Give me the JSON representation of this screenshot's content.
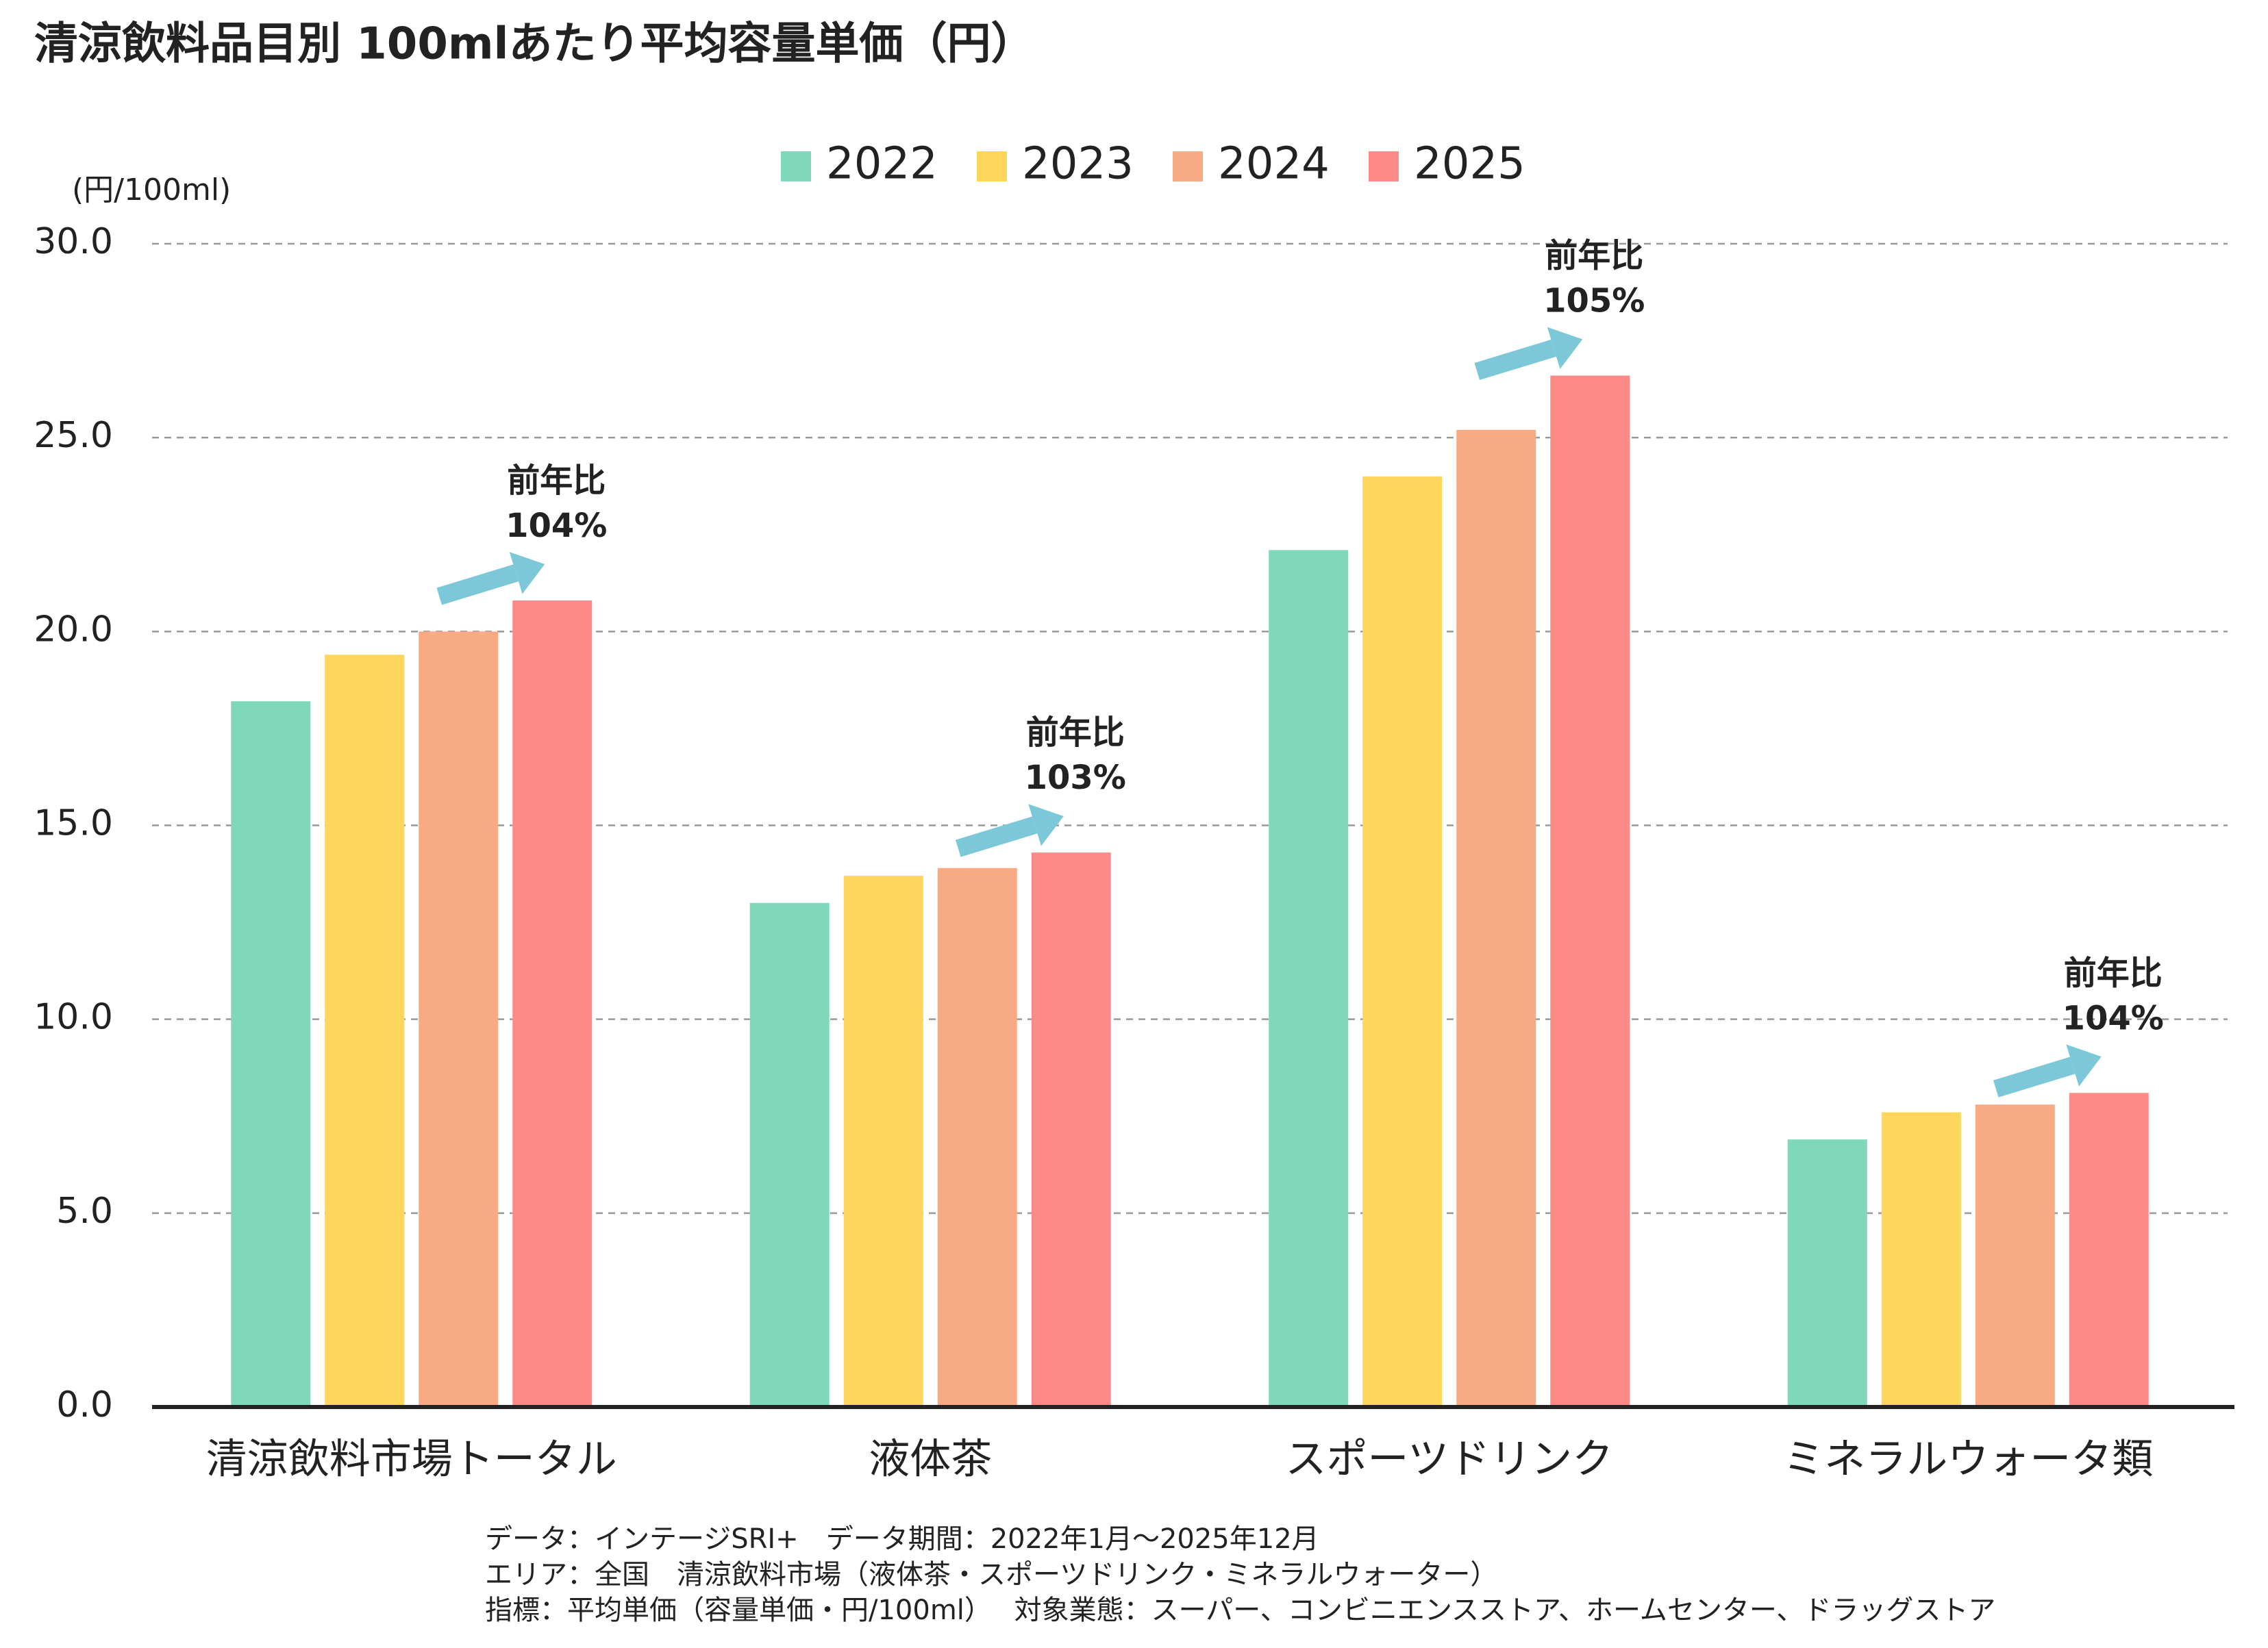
{
  "chart_data": {
    "type": "bar",
    "title": "清涼飲料品目別 100mlあたり平均容量単価（円）",
    "y_label": "(円/100ml)",
    "categories": [
      "清涼飲料市場トータル",
      "液体茶",
      "スポーツドリンク",
      "ミネラルウォータ類"
    ],
    "series": [
      {
        "name": "2022",
        "color": "#7fd8ba",
        "values": [
          18.2,
          13.0,
          22.1,
          6.9
        ]
      },
      {
        "name": "2023",
        "color": "#fdd65b",
        "values": [
          19.4,
          13.7,
          24.0,
          7.6
        ]
      },
      {
        "name": "2024",
        "color": "#f8aa85",
        "values": [
          20.0,
          13.9,
          25.2,
          7.8
        ]
      },
      {
        "name": "2025",
        "color": "#fe8a88",
        "values": [
          20.8,
          14.3,
          26.6,
          8.1
        ]
      }
    ],
    "annotations": [
      {
        "lines": [
          "前年比",
          "104%"
        ]
      },
      {
        "lines": [
          "前年比",
          "103%"
        ]
      },
      {
        "lines": [
          "前年比",
          "105%"
        ]
      },
      {
        "lines": [
          "前年比",
          "104%"
        ]
      }
    ],
    "ylim": [
      0,
      30
    ],
    "yticks": [
      {
        "value": 0,
        "label": "0.0"
      },
      {
        "value": 5,
        "label": "5.0"
      },
      {
        "value": 10,
        "label": "10.0"
      },
      {
        "value": 15,
        "label": "15.0"
      },
      {
        "value": 20,
        "label": "20.0"
      },
      {
        "value": 25,
        "label": "25.0"
      },
      {
        "value": 30,
        "label": "30.0"
      }
    ],
    "grid": true,
    "legend": "top",
    "notes": [
      "データ：インテージSRI+　データ期間：2022年1月～2025年12月",
      "エリア：全国　清涼飲料市場（液体茶・スポーツドリンク・ミネラルウォーター）",
      "指標：平均単価（容量単価・円/100ml）　 対象業態：スーパー、コンビニエンスストア、ホームセンター、ドラッグストア"
    ]
  }
}
